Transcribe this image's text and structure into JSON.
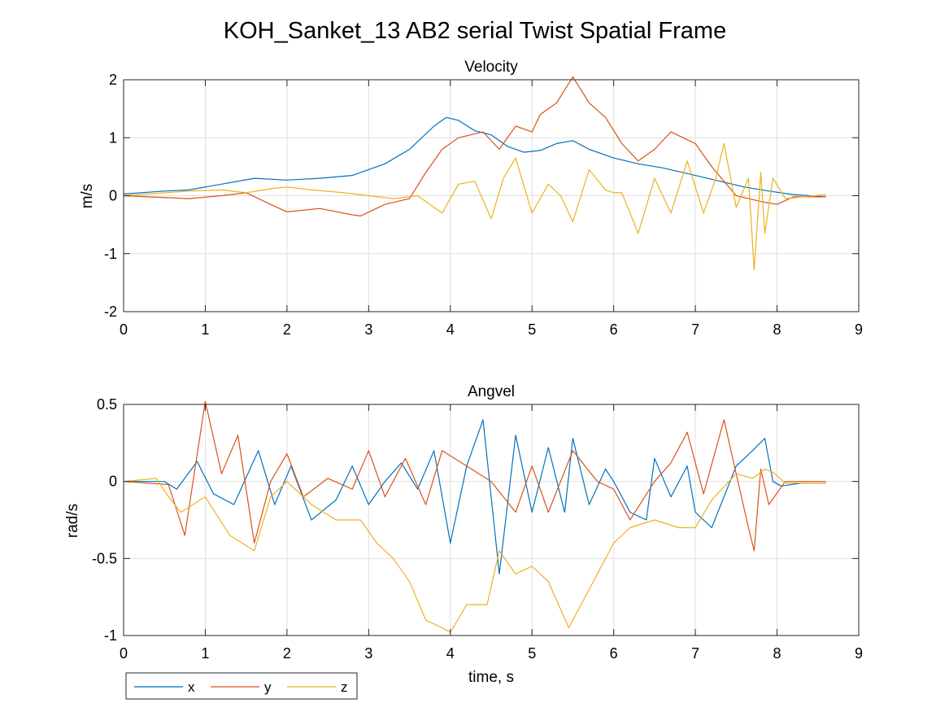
{
  "figure": {
    "title": "KOH_Sanket_13 AB2 serial Twist Spatial Frame"
  },
  "legend": {
    "entries": [
      {
        "label": "x",
        "color": "#0072BD"
      },
      {
        "label": "y",
        "color": "#D95319"
      },
      {
        "label": "z",
        "color": "#EDB120"
      }
    ],
    "placement": "bottom-left"
  },
  "chart_data": [
    {
      "type": "line",
      "title": "Velocity",
      "xlabel": "",
      "ylabel": "m/s",
      "xlim": [
        0,
        9
      ],
      "ylim": [
        -2,
        2
      ],
      "xticks": [
        0,
        1,
        2,
        3,
        4,
        5,
        6,
        7,
        8,
        9
      ],
      "yticks": [
        -2,
        -1,
        0,
        1,
        2
      ],
      "grid": true,
      "series": [
        {
          "name": "x",
          "color": "#0072BD",
          "x": [
            0,
            0.5,
            0.8,
            1.2,
            1.6,
            2.0,
            2.4,
            2.8,
            3.2,
            3.5,
            3.8,
            3.95,
            4.1,
            4.3,
            4.5,
            4.7,
            4.9,
            5.1,
            5.3,
            5.5,
            5.7,
            6.0,
            6.3,
            6.6,
            7.0,
            7.3,
            7.6,
            7.9,
            8.2,
            8.6
          ],
          "y": [
            0.03,
            0.08,
            0.1,
            0.2,
            0.3,
            0.27,
            0.3,
            0.35,
            0.55,
            0.8,
            1.2,
            1.35,
            1.3,
            1.12,
            1.05,
            0.85,
            0.75,
            0.78,
            0.9,
            0.95,
            0.8,
            0.65,
            0.55,
            0.48,
            0.35,
            0.25,
            0.15,
            0.08,
            0.02,
            -0.02
          ]
        },
        {
          "name": "y",
          "color": "#D95319",
          "x": [
            0,
            0.8,
            1.2,
            1.5,
            1.8,
            2.0,
            2.4,
            2.8,
            2.9,
            3.2,
            3.5,
            3.7,
            3.9,
            4.1,
            4.4,
            4.6,
            4.8,
            5.0,
            5.1,
            5.3,
            5.5,
            5.7,
            5.9,
            6.1,
            6.3,
            6.5,
            6.7,
            7.0,
            7.2,
            7.5,
            7.8,
            8.0,
            8.2,
            8.6
          ],
          "y": [
            0,
            -0.05,
            0.0,
            0.05,
            -0.15,
            -0.28,
            -0.22,
            -0.33,
            -0.35,
            -0.15,
            -0.05,
            0.4,
            0.8,
            1.0,
            1.1,
            0.8,
            1.2,
            1.1,
            1.4,
            1.6,
            2.05,
            1.6,
            1.35,
            0.9,
            0.6,
            0.8,
            1.1,
            0.9,
            0.5,
            0.0,
            -0.1,
            -0.15,
            -0.02,
            -0.02
          ]
        },
        {
          "name": "z",
          "color": "#EDB120",
          "x": [
            0,
            0.8,
            1.2,
            1.5,
            1.8,
            2.0,
            2.3,
            2.7,
            3.0,
            3.3,
            3.6,
            3.9,
            4.1,
            4.3,
            4.5,
            4.65,
            4.8,
            5.0,
            5.2,
            5.35,
            5.5,
            5.7,
            5.9,
            6.0,
            6.1,
            6.3,
            6.5,
            6.7,
            6.9,
            7.1,
            7.25,
            7.35,
            7.5,
            7.65,
            7.72,
            7.8,
            7.85,
            7.95,
            8.1,
            8.6
          ],
          "y": [
            0.0,
            0.08,
            0.1,
            0.05,
            0.12,
            0.15,
            0.1,
            0.05,
            0.0,
            -0.05,
            0.0,
            -0.3,
            0.2,
            0.25,
            -0.4,
            0.3,
            0.65,
            -0.3,
            0.2,
            0.0,
            -0.45,
            0.45,
            0.1,
            0.05,
            0.05,
            -0.65,
            0.3,
            -0.3,
            0.6,
            -0.3,
            0.3,
            0.9,
            -0.2,
            0.3,
            -1.28,
            0.4,
            -0.65,
            0.3,
            -0.05,
            0.02
          ]
        }
      ]
    },
    {
      "type": "line",
      "title": "Angvel",
      "xlabel": "time, s",
      "ylabel": "rad/s",
      "xlim": [
        0,
        9
      ],
      "ylim": [
        -1,
        0.5
      ],
      "xticks": [
        0,
        1,
        2,
        3,
        4,
        5,
        6,
        7,
        8,
        9
      ],
      "yticks": [
        -1,
        -0.5,
        0,
        0.5
      ],
      "grid": true,
      "series": [
        {
          "name": "x",
          "color": "#0072BD",
          "x": [
            0,
            0.5,
            0.65,
            0.9,
            1.1,
            1.35,
            1.65,
            1.85,
            2.05,
            2.3,
            2.6,
            2.8,
            3.0,
            3.2,
            3.4,
            3.6,
            3.8,
            4.0,
            4.2,
            4.4,
            4.6,
            4.8,
            5.0,
            5.2,
            5.4,
            5.5,
            5.7,
            5.9,
            6.0,
            6.2,
            6.4,
            6.5,
            6.7,
            6.9,
            7.0,
            7.2,
            7.5,
            7.7,
            7.85,
            7.95,
            8.05,
            8.3,
            8.6
          ],
          "y": [
            0,
            0,
            -0.05,
            0.13,
            -0.08,
            -0.15,
            0.2,
            -0.15,
            0.1,
            -0.25,
            -0.12,
            0.1,
            -0.15,
            0.0,
            0.12,
            -0.05,
            0.2,
            -0.4,
            0.1,
            0.4,
            -0.6,
            0.3,
            -0.2,
            0.22,
            -0.2,
            0.28,
            -0.15,
            0.08,
            0.0,
            -0.2,
            -0.25,
            0.15,
            -0.1,
            0.1,
            -0.2,
            -0.3,
            0.1,
            0.2,
            0.28,
            0.0,
            -0.03,
            -0.01,
            -0.01
          ]
        },
        {
          "name": "y",
          "color": "#D95319",
          "x": [
            0,
            0.55,
            0.75,
            1.0,
            1.2,
            1.4,
            1.6,
            1.8,
            2.0,
            2.2,
            2.5,
            2.8,
            3.0,
            3.2,
            3.45,
            3.7,
            3.9,
            4.2,
            4.5,
            4.8,
            5.0,
            5.2,
            5.5,
            5.8,
            6.0,
            6.2,
            6.5,
            6.7,
            6.9,
            7.1,
            7.35,
            7.5,
            7.65,
            7.72,
            7.8,
            7.9,
            8.1,
            8.6
          ],
          "y": [
            0,
            -0.02,
            -0.35,
            0.52,
            0.05,
            0.3,
            -0.4,
            0.0,
            0.18,
            -0.1,
            0.02,
            -0.05,
            0.2,
            -0.1,
            0.15,
            -0.15,
            0.2,
            0.1,
            0.0,
            -0.2,
            0.1,
            -0.2,
            0.2,
            0.0,
            -0.05,
            -0.25,
            0.0,
            0.12,
            0.32,
            -0.08,
            0.4,
            0.05,
            -0.3,
            -0.45,
            0.08,
            -0.15,
            0.0,
            0.0
          ]
        },
        {
          "name": "z",
          "color": "#EDB120",
          "x": [
            0,
            0.4,
            0.55,
            0.7,
            1.0,
            1.3,
            1.6,
            1.8,
            2.0,
            2.3,
            2.6,
            2.9,
            3.1,
            3.3,
            3.5,
            3.7,
            3.9,
            4.0,
            4.2,
            4.45,
            4.6,
            4.8,
            5.0,
            5.2,
            5.45,
            5.6,
            5.8,
            6.0,
            6.2,
            6.5,
            6.8,
            7.0,
            7.2,
            7.5,
            7.7,
            7.85,
            7.95,
            8.1,
            8.6
          ],
          "y": [
            0,
            0.02,
            -0.1,
            -0.2,
            -0.1,
            -0.35,
            -0.45,
            -0.1,
            0.0,
            -0.15,
            -0.25,
            -0.25,
            -0.4,
            -0.5,
            -0.65,
            -0.9,
            -0.95,
            -0.98,
            -0.8,
            -0.8,
            -0.45,
            -0.6,
            -0.55,
            -0.65,
            -0.95,
            -0.8,
            -0.6,
            -0.4,
            -0.3,
            -0.25,
            -0.3,
            -0.3,
            -0.12,
            0.05,
            0.02,
            0.08,
            0.06,
            -0.01,
            -0.01
          ]
        }
      ]
    }
  ]
}
